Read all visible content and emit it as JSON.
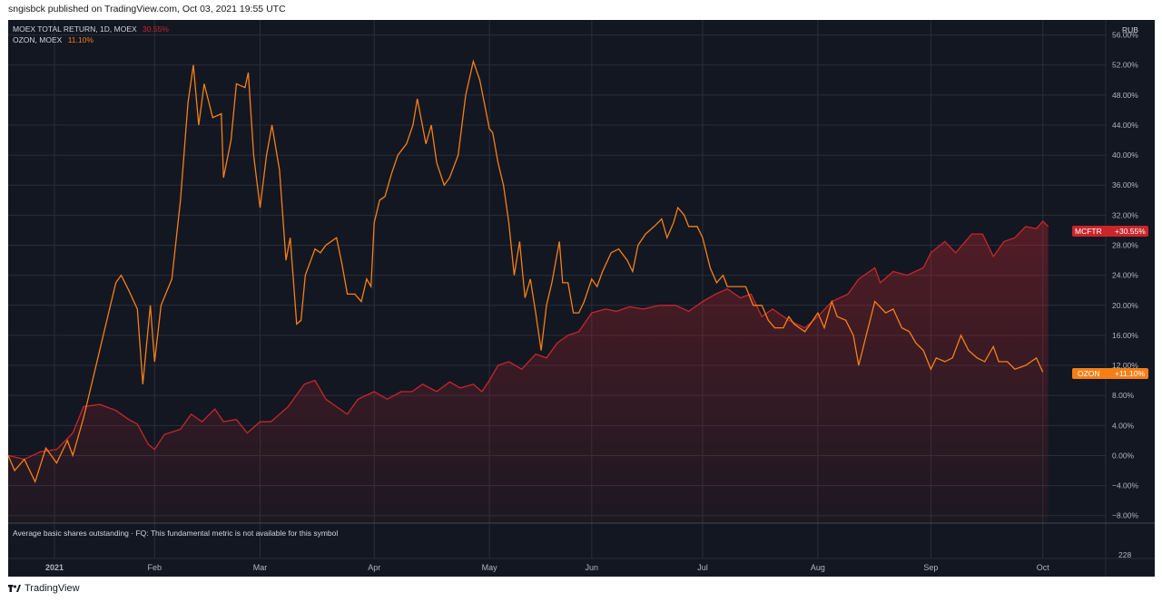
{
  "header": {
    "published_text": "sngisbck published on TradingView.com, Oct 03, 2021 19:55 UTC"
  },
  "legend": [
    {
      "name": "MOEX TOTAL RETURN, 1D, MOEX",
      "value": "30.55%",
      "color": "#c9262b"
    },
    {
      "name": "OZON, MOEX",
      "value": "11.10%",
      "color": "#f57f17"
    }
  ],
  "currency_label": "RUB",
  "indicator_pane": {
    "message": "Average basic shares outstanding · FQ: This fundamental metric is not available for this symbol",
    "axis_label": "228"
  },
  "footer": {
    "brand": "TradingView"
  },
  "price_labels": [
    {
      "ticker": "MCFTR",
      "value": "+30.55%",
      "color": "#c9262b"
    },
    {
      "ticker": "OZON",
      "value": "+11.10%",
      "color": "#f57f17"
    }
  ],
  "colors": {
    "background": "#131722",
    "grid": "#2a2e39",
    "text": "#b2b5be"
  },
  "chart_data": {
    "type": "line",
    "y_unit": "%",
    "ylim": [
      -9,
      58
    ],
    "y_ticks": [
      "56.00%",
      "52.00%",
      "48.00%",
      "44.00%",
      "40.00%",
      "36.00%",
      "32.00%",
      "28.00%",
      "24.00%",
      "20.00%",
      "16.00%",
      "12.00%",
      "8.00%",
      "4.00%",
      "0.00%",
      "−4.00%",
      "−8.00%"
    ],
    "y_tick_values": [
      56,
      52,
      48,
      44,
      40,
      36,
      32,
      28,
      24,
      20,
      16,
      12,
      8,
      4,
      0,
      -4,
      -8
    ],
    "x_ticks": [
      {
        "label": "2021",
        "t": 0.043
      },
      {
        "label": "Feb",
        "t": 0.136
      },
      {
        "label": "Mar",
        "t": 0.234
      },
      {
        "label": "Apr",
        "t": 0.34
      },
      {
        "label": "May",
        "t": 0.447
      },
      {
        "label": "Jun",
        "t": 0.542
      },
      {
        "label": "Jul",
        "t": 0.645
      },
      {
        "label": "Aug",
        "t": 0.752
      },
      {
        "label": "Sep",
        "t": 0.857
      },
      {
        "label": "Oct",
        "t": 0.961
      }
    ],
    "series": [
      {
        "name": "MOEX TOTAL RETURN, 1D, MOEX",
        "color": "#c9262b",
        "points": [
          [
            0,
            0
          ],
          [
            0.015,
            -0.5
          ],
          [
            0.03,
            0.5
          ],
          [
            0.045,
            0.8
          ],
          [
            0.06,
            3
          ],
          [
            0.07,
            6.5
          ],
          [
            0.085,
            6.8
          ],
          [
            0.1,
            6
          ],
          [
            0.112,
            4.8
          ],
          [
            0.12,
            4.2
          ],
          [
            0.13,
            1.5
          ],
          [
            0.136,
            0.8
          ],
          [
            0.145,
            2.8
          ],
          [
            0.16,
            3.5
          ],
          [
            0.17,
            5.5
          ],
          [
            0.18,
            4.5
          ],
          [
            0.192,
            6.2
          ],
          [
            0.2,
            4.5
          ],
          [
            0.212,
            4.8
          ],
          [
            0.222,
            3
          ],
          [
            0.234,
            4.5
          ],
          [
            0.244,
            4.5
          ],
          [
            0.26,
            6.5
          ],
          [
            0.275,
            9.5
          ],
          [
            0.285,
            10
          ],
          [
            0.295,
            7.5
          ],
          [
            0.305,
            6.5
          ],
          [
            0.315,
            5.5
          ],
          [
            0.325,
            7.5
          ],
          [
            0.34,
            8.5
          ],
          [
            0.352,
            7.5
          ],
          [
            0.365,
            8.5
          ],
          [
            0.375,
            8.5
          ],
          [
            0.385,
            9.5
          ],
          [
            0.398,
            8.5
          ],
          [
            0.41,
            9.8
          ],
          [
            0.42,
            9
          ],
          [
            0.432,
            9.5
          ],
          [
            0.44,
            8.5
          ],
          [
            0.447,
            10
          ],
          [
            0.455,
            12
          ],
          [
            0.465,
            12.5
          ],
          [
            0.477,
            11.5
          ],
          [
            0.49,
            13.5
          ],
          [
            0.5,
            13
          ],
          [
            0.51,
            15
          ],
          [
            0.52,
            16
          ],
          [
            0.53,
            16.5
          ],
          [
            0.542,
            19
          ],
          [
            0.555,
            19.5
          ],
          [
            0.565,
            19.2
          ],
          [
            0.577,
            19.8
          ],
          [
            0.59,
            19.5
          ],
          [
            0.605,
            20
          ],
          [
            0.62,
            20
          ],
          [
            0.632,
            19.2
          ],
          [
            0.645,
            20.5
          ],
          [
            0.657,
            21.5
          ],
          [
            0.668,
            22.2
          ],
          [
            0.68,
            21
          ],
          [
            0.69,
            21.5
          ],
          [
            0.7,
            18.5
          ],
          [
            0.71,
            19.5
          ],
          [
            0.725,
            18
          ],
          [
            0.74,
            17
          ],
          [
            0.752,
            18.5
          ],
          [
            0.765,
            20.5
          ],
          [
            0.78,
            21.5
          ],
          [
            0.79,
            23.5
          ],
          [
            0.805,
            25
          ],
          [
            0.81,
            23
          ],
          [
            0.822,
            24.5
          ],
          [
            0.835,
            24
          ],
          [
            0.85,
            25
          ],
          [
            0.857,
            27
          ],
          [
            0.87,
            28.5
          ],
          [
            0.88,
            27
          ],
          [
            0.895,
            29.5
          ],
          [
            0.905,
            29.5
          ],
          [
            0.915,
            26.5
          ],
          [
            0.925,
            28.5
          ],
          [
            0.935,
            29
          ],
          [
            0.945,
            30.5
          ],
          [
            0.955,
            30.2
          ],
          [
            0.961,
            31.2
          ],
          [
            0.966,
            30.5
          ]
        ]
      },
      {
        "name": "OZON, MOEX",
        "color": "#f57f17",
        "points": [
          [
            0,
            0
          ],
          [
            0.006,
            -2
          ],
          [
            0.015,
            -0.5
          ],
          [
            0.025,
            -3.5
          ],
          [
            0.035,
            1
          ],
          [
            0.045,
            -1
          ],
          [
            0.055,
            2
          ],
          [
            0.06,
            0
          ],
          [
            0.07,
            5
          ],
          [
            0.08,
            11
          ],
          [
            0.09,
            17
          ],
          [
            0.1,
            23
          ],
          [
            0.105,
            24
          ],
          [
            0.112,
            22
          ],
          [
            0.12,
            19.5
          ],
          [
            0.125,
            9.5
          ],
          [
            0.132,
            20
          ],
          [
            0.136,
            12.5
          ],
          [
            0.142,
            20
          ],
          [
            0.152,
            23.5
          ],
          [
            0.16,
            34
          ],
          [
            0.167,
            47
          ],
          [
            0.172,
            52
          ],
          [
            0.177,
            44
          ],
          [
            0.182,
            49.5
          ],
          [
            0.19,
            45
          ],
          [
            0.198,
            45.5
          ],
          [
            0.2,
            37
          ],
          [
            0.207,
            42
          ],
          [
            0.212,
            49.5
          ],
          [
            0.22,
            49
          ],
          [
            0.223,
            51
          ],
          [
            0.228,
            40
          ],
          [
            0.234,
            33
          ],
          [
            0.24,
            40
          ],
          [
            0.245,
            44
          ],
          [
            0.252,
            38
          ],
          [
            0.258,
            26
          ],
          [
            0.262,
            29
          ],
          [
            0.268,
            17.5
          ],
          [
            0.272,
            18
          ],
          [
            0.276,
            24
          ],
          [
            0.285,
            27.5
          ],
          [
            0.29,
            27
          ],
          [
            0.295,
            28
          ],
          [
            0.305,
            29
          ],
          [
            0.31,
            25.5
          ],
          [
            0.315,
            21.5
          ],
          [
            0.322,
            21.5
          ],
          [
            0.328,
            20.5
          ],
          [
            0.333,
            23.5
          ],
          [
            0.337,
            22.5
          ],
          [
            0.34,
            31
          ],
          [
            0.345,
            34
          ],
          [
            0.35,
            34.5
          ],
          [
            0.356,
            37.5
          ],
          [
            0.362,
            40
          ],
          [
            0.37,
            41.5
          ],
          [
            0.376,
            44
          ],
          [
            0.38,
            47.5
          ],
          [
            0.388,
            41.5
          ],
          [
            0.393,
            44
          ],
          [
            0.398,
            39
          ],
          [
            0.405,
            36
          ],
          [
            0.41,
            37
          ],
          [
            0.418,
            40
          ],
          [
            0.425,
            48
          ],
          [
            0.432,
            52.5
          ],
          [
            0.438,
            50
          ],
          [
            0.447,
            43.5
          ],
          [
            0.45,
            43
          ],
          [
            0.455,
            39
          ],
          [
            0.46,
            36
          ],
          [
            0.465,
            31
          ],
          [
            0.47,
            24
          ],
          [
            0.475,
            28.5
          ],
          [
            0.48,
            21
          ],
          [
            0.485,
            23.5
          ],
          [
            0.49,
            19
          ],
          [
            0.495,
            14
          ],
          [
            0.5,
            20
          ],
          [
            0.505,
            23
          ],
          [
            0.512,
            28.5
          ],
          [
            0.515,
            23
          ],
          [
            0.52,
            23
          ],
          [
            0.525,
            19
          ],
          [
            0.53,
            19
          ],
          [
            0.535,
            20.5
          ],
          [
            0.542,
            23.5
          ],
          [
            0.547,
            22.5
          ],
          [
            0.552,
            24.5
          ],
          [
            0.56,
            27
          ],
          [
            0.567,
            27.5
          ],
          [
            0.575,
            26
          ],
          [
            0.58,
            24.5
          ],
          [
            0.585,
            28
          ],
          [
            0.592,
            29.5
          ],
          [
            0.6,
            30.5
          ],
          [
            0.607,
            31.5
          ],
          [
            0.612,
            29
          ],
          [
            0.618,
            31
          ],
          [
            0.622,
            33
          ],
          [
            0.628,
            32
          ],
          [
            0.632,
            30.5
          ],
          [
            0.64,
            30.5
          ],
          [
            0.645,
            29
          ],
          [
            0.652,
            25
          ],
          [
            0.658,
            23
          ],
          [
            0.664,
            24
          ],
          [
            0.668,
            22.5
          ],
          [
            0.675,
            22.5
          ],
          [
            0.685,
            22.5
          ],
          [
            0.692,
            20
          ],
          [
            0.7,
            20
          ],
          [
            0.706,
            18
          ],
          [
            0.712,
            17
          ],
          [
            0.72,
            17
          ],
          [
            0.725,
            18.5
          ],
          [
            0.73,
            17.5
          ],
          [
            0.74,
            16.5
          ],
          [
            0.745,
            17.5
          ],
          [
            0.752,
            19
          ],
          [
            0.758,
            17
          ],
          [
            0.765,
            20.5
          ],
          [
            0.77,
            18.5
          ],
          [
            0.778,
            18
          ],
          [
            0.785,
            16
          ],
          [
            0.79,
            12
          ],
          [
            0.797,
            16
          ],
          [
            0.805,
            20.5
          ],
          [
            0.815,
            19
          ],
          [
            0.822,
            19.5
          ],
          [
            0.83,
            17
          ],
          [
            0.837,
            16.5
          ],
          [
            0.843,
            15
          ],
          [
            0.85,
            14
          ],
          [
            0.857,
            11.5
          ],
          [
            0.862,
            13
          ],
          [
            0.87,
            12.5
          ],
          [
            0.877,
            13
          ],
          [
            0.885,
            16
          ],
          [
            0.892,
            14
          ],
          [
            0.9,
            13
          ],
          [
            0.907,
            12.5
          ],
          [
            0.915,
            14.5
          ],
          [
            0.92,
            12.5
          ],
          [
            0.928,
            12.5
          ],
          [
            0.935,
            11.5
          ],
          [
            0.945,
            12
          ],
          [
            0.955,
            13
          ],
          [
            0.961,
            11.1
          ]
        ]
      }
    ]
  }
}
